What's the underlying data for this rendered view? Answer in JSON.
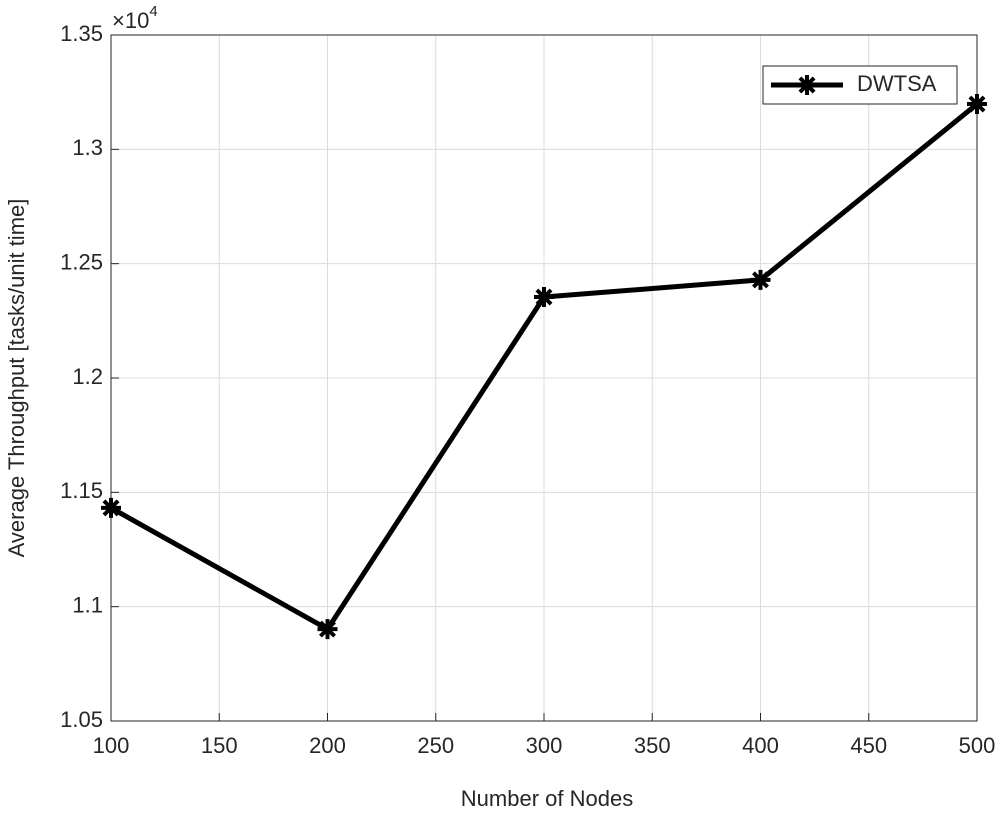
{
  "chart_data": {
    "type": "line",
    "x_label": "Number of Nodes",
    "y_label": "Average Throughput [tasks/unit time]",
    "y_multiplier_base": "×10",
    "y_multiplier_exponent": "4",
    "x": [
      100,
      200,
      300,
      400,
      500
    ],
    "series": [
      {
        "name": "DWTSA",
        "color": "#000000",
        "values": [
          1.1432,
          1.0902,
          1.2354,
          1.2429,
          1.3198
        ]
      }
    ],
    "xlim": [
      100,
      500
    ],
    "xticks": [
      100,
      150,
      200,
      250,
      300,
      350,
      400,
      450,
      500
    ],
    "ylim": [
      1.05,
      1.35
    ],
    "yticks": [
      1.05,
      1.1,
      1.15,
      1.2,
      1.25,
      1.3,
      1.35
    ],
    "grid": true,
    "legend": "top-right"
  }
}
